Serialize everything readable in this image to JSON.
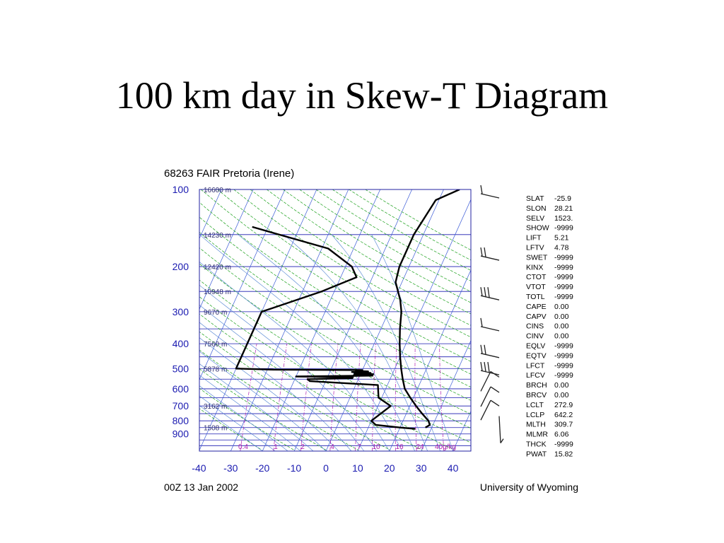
{
  "slide": {
    "title": "100 km day in Skew-T Diagram"
  },
  "diagram": {
    "station_title": "68263 FAIR Pretoria (Irene)",
    "date": "00Z 13 Jan 2002",
    "source": "University of Wyoming",
    "pressure_labels": [
      "100",
      "200",
      "300",
      "400",
      "500",
      "600",
      "700",
      "800",
      "900"
    ],
    "height_labels": [
      "16600 m",
      "14230 m",
      "12420 m",
      "10948 m",
      "9670 m",
      "7560 m",
      "5878 m",
      "3162 m",
      "1508 m"
    ],
    "temperature_labels": [
      "-40",
      "-30",
      "-20",
      "-10",
      "0",
      "10",
      "20",
      "30",
      "40"
    ],
    "mixing_ratio_labels": [
      "0.4",
      "1",
      "2",
      "4",
      "7",
      "10",
      "16",
      "24",
      "40g/kg"
    ],
    "colors": {
      "isobar": "#1a1ab0",
      "isotherm": "#3b5bd6",
      "dry_adiabat": "#1aa01a",
      "moist_adiabat": "#4a7fd0",
      "mixing_ratio": "#b020b0",
      "profile": "#000000",
      "label": "#1a1ab0"
    }
  },
  "indices": [
    {
      "name": "SLAT",
      "value": "-25.9"
    },
    {
      "name": "SLON",
      "value": "28.21"
    },
    {
      "name": "SELV",
      "value": "1523."
    },
    {
      "name": "SHOW",
      "value": "-9999"
    },
    {
      "name": "LIFT",
      "value": "5.21"
    },
    {
      "name": "LFTV",
      "value": "4.78"
    },
    {
      "name": "SWET",
      "value": "-9999"
    },
    {
      "name": "KINX",
      "value": "-9999"
    },
    {
      "name": "CTOT",
      "value": "-9999"
    },
    {
      "name": "VTOT",
      "value": "-9999"
    },
    {
      "name": "TOTL",
      "value": "-9999"
    },
    {
      "name": "CAPE",
      "value": "0.00"
    },
    {
      "name": "CAPV",
      "value": "0.00"
    },
    {
      "name": "CINS",
      "value": "0.00"
    },
    {
      "name": "CINV",
      "value": "0.00"
    },
    {
      "name": "EQLV",
      "value": "-9999"
    },
    {
      "name": "EQTV",
      "value": "-9999"
    },
    {
      "name": "LFCT",
      "value": "-9999"
    },
    {
      "name": "LFCV",
      "value": "-9999"
    },
    {
      "name": "BRCH",
      "value": "0.00"
    },
    {
      "name": "BRCV",
      "value": "0.00"
    },
    {
      "name": "LCLT",
      "value": "272.9"
    },
    {
      "name": "LCLP",
      "value": "642.2"
    },
    {
      "name": "MLTH",
      "value": "309.7"
    },
    {
      "name": "MLMR",
      "value": "6.06"
    },
    {
      "name": "THCK",
      "value": "-9999"
    },
    {
      "name": "PWAT",
      "value": "15.82"
    }
  ],
  "profiles": {
    "temperature": [
      [
        100,
        5
      ],
      [
        110,
        -1
      ],
      [
        150,
        -3
      ],
      [
        180,
        -3
      ],
      [
        200,
        -3
      ],
      [
        230,
        -2
      ],
      [
        270,
        2
      ],
      [
        300,
        4
      ],
      [
        350,
        6
      ],
      [
        400,
        8
      ],
      [
        450,
        10
      ],
      [
        500,
        12
      ],
      [
        550,
        14
      ],
      [
        600,
        16
      ],
      [
        650,
        19
      ],
      [
        700,
        22
      ],
      [
        750,
        25
      ],
      [
        800,
        28
      ],
      [
        830,
        29
      ],
      [
        850,
        28
      ]
    ],
    "dewpoint": [
      [
        140,
        -55
      ],
      [
        170,
        -28
      ],
      [
        200,
        -18
      ],
      [
        220,
        -15
      ],
      [
        250,
        -24
      ],
      [
        300,
        -40
      ],
      [
        350,
        -40
      ],
      [
        400,
        -40
      ],
      [
        480,
        -40
      ],
      [
        500,
        -40
      ],
      [
        505,
        -28
      ],
      [
        507,
        0
      ],
      [
        510,
        -2
      ],
      [
        513,
        2
      ],
      [
        516,
        -3
      ],
      [
        520,
        3
      ],
      [
        523,
        -2
      ],
      [
        526,
        4
      ],
      [
        530,
        -2
      ],
      [
        533,
        4
      ],
      [
        537,
        -20
      ],
      [
        540,
        -2
      ],
      [
        545,
        -2
      ],
      [
        550,
        -16
      ],
      [
        560,
        -15
      ],
      [
        580,
        7
      ],
      [
        650,
        9
      ],
      [
        700,
        14
      ],
      [
        800,
        10
      ],
      [
        830,
        12
      ],
      [
        850,
        20
      ],
      [
        860,
        25
      ]
    ]
  }
}
